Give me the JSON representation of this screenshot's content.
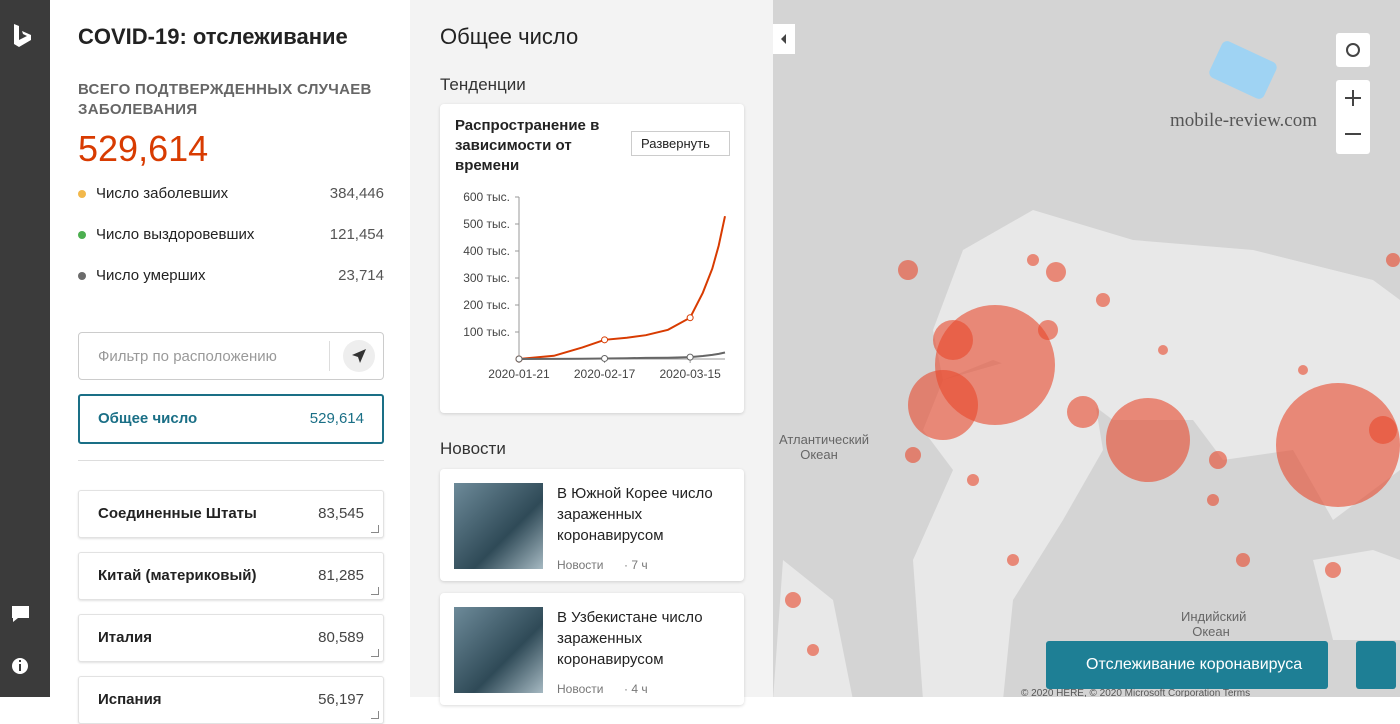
{
  "header": {
    "title": "COVID-19: отслеживание"
  },
  "summary": {
    "label": "ВСЕГО ПОДТВЕРЖДЕННЫХ СЛУЧАЕВ ЗАБОЛЕВАНИЯ",
    "total": "529,614",
    "rows": [
      {
        "label": "Число заболевших",
        "value": "384,446",
        "color": "#f2b84b"
      },
      {
        "label": "Число выздоровевших",
        "value": "121,454",
        "color": "#4caf50"
      },
      {
        "label": "Число умерших",
        "value": "23,714",
        "color": "#6b6b6b"
      }
    ]
  },
  "filter": {
    "placeholder": "Фильтр по расположению"
  },
  "selected": {
    "label": "Общее число",
    "value": "529,614"
  },
  "countries": [
    {
      "label": "Соединенные Штаты",
      "value": "83,545"
    },
    {
      "label": "Китай (материковый)",
      "value": "81,285"
    },
    {
      "label": "Италия",
      "value": "80,589"
    },
    {
      "label": "Испания",
      "value": "56,197"
    }
  ],
  "middle": {
    "title": "Общее число",
    "trends_heading": "Тенденции",
    "news_heading": "Новости"
  },
  "trend_card": {
    "title": "Распространение в зависимости от времени",
    "expand_button": "Развернуть"
  },
  "chart_data": {
    "type": "line",
    "x": [
      "2020-01-21",
      "2020-02-01",
      "2020-02-10",
      "2020-02-17",
      "2020-02-24",
      "2020-03-01",
      "2020-03-08",
      "2020-03-15",
      "2020-03-19",
      "2020-03-22",
      "2020-03-24",
      "2020-03-26"
    ],
    "series": [
      {
        "color": "#d83b01",
        "values": [
          0,
          12000,
          43000,
          71000,
          79000,
          88000,
          108000,
          153000,
          245000,
          335000,
          420000,
          529000
        ]
      },
      {
        "color": "#666666",
        "values": [
          0,
          300,
          1000,
          2000,
          3000,
          4000,
          5000,
          7000,
          11000,
          15000,
          19000,
          24000
        ]
      }
    ],
    "xlim": [
      "2020-01-21",
      "2020-03-26"
    ],
    "xticks": [
      "2020-01-21",
      "2020-02-17",
      "2020-03-15"
    ],
    "ylim": [
      0,
      600000
    ],
    "yticks": [
      {
        "value": 100000,
        "label": "100 тыс."
      },
      {
        "value": 200000,
        "label": "200 тыс."
      },
      {
        "value": 300000,
        "label": "300 тыс."
      },
      {
        "value": 400000,
        "label": "400 тыс."
      },
      {
        "value": 500000,
        "label": "500 тыс."
      },
      {
        "value": 600000,
        "label": "600 тыс."
      }
    ]
  },
  "news": [
    {
      "title": "В Южной Корее число зараженных коронавирусом",
      "source": "Новости",
      "time": "· 7 ч"
    },
    {
      "title": "В Узбекистане число зараженных коронавирусом",
      "source": "Новости",
      "time": "· 4 ч"
    }
  ],
  "map": {
    "atlantic": "Атлантический Океан",
    "indian": "Индийский Океан",
    "watermark": "mobile-review.com",
    "button": "Отслеживание коронавируса",
    "copyright": "© 2020 HERE, © 2020 Microsoft Corporation Terms"
  }
}
